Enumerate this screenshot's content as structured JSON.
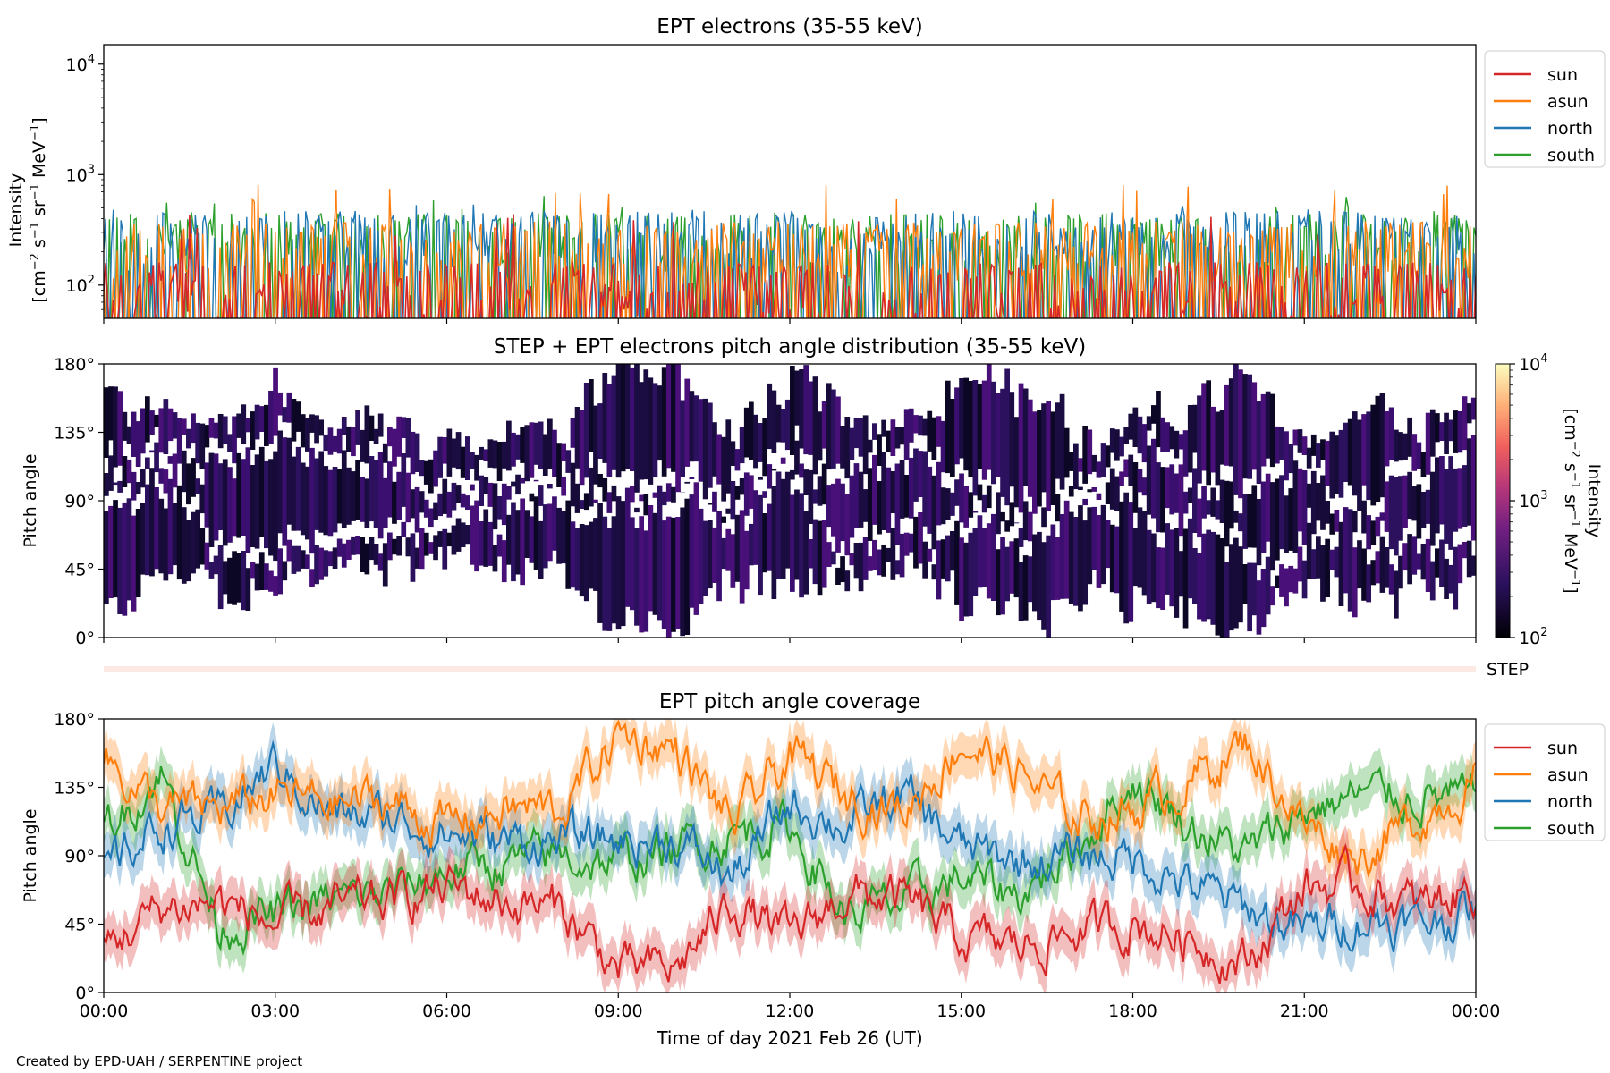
{
  "footer": "Created by EPD-UAH / SERPENTINE project",
  "x_axis": {
    "label": "Time of day 2021 Feb 26 (UT)",
    "ticks": [
      "00:00",
      "03:00",
      "06:00",
      "09:00",
      "12:00",
      "15:00",
      "18:00",
      "21:00",
      "00:00"
    ]
  },
  "colors": {
    "sun": "#d62728",
    "asun": "#ff7f0e",
    "north": "#1f77b4",
    "south": "#2ca02c"
  },
  "chart_data": [
    {
      "type": "line",
      "title": "EPT electrons (35-55 keV)",
      "xlabel": "",
      "ylabel": "Intensity",
      "yunit_base": "[cm",
      "yscale": "log",
      "ylim": [
        50,
        15000
      ],
      "yticks": [
        {
          "value": 100,
          "base": "10",
          "exp": "2"
        },
        {
          "value": 1000,
          "base": "10",
          "exp": "3"
        },
        {
          "value": 10000,
          "base": "10",
          "exp": "4"
        }
      ],
      "xlim_hours": [
        0,
        24
      ],
      "legend_position": "outside-right",
      "series": [
        {
          "name": "sun",
          "typical_level": 90,
          "peak": 450
        },
        {
          "name": "asun",
          "typical_level": 210,
          "peak": 850
        },
        {
          "name": "north",
          "typical_level": 260,
          "peak": 600
        },
        {
          "name": "south",
          "typical_level": 250,
          "peak": 650
        }
      ]
    },
    {
      "type": "heatmap",
      "title": "STEP + EPT electrons pitch angle distribution (35-55 keV)",
      "ylabel": "Pitch angle",
      "ylim": [
        0,
        180
      ],
      "yticks": [
        "0°",
        "45°",
        "90°",
        "135°",
        "180°"
      ],
      "colorbar": {
        "label": "Intensity",
        "scale": "log",
        "range": [
          100,
          10000
        ],
        "ticks": [
          {
            "value": 100,
            "base": "10",
            "exp": "2"
          },
          {
            "value": 1000,
            "base": "10",
            "exp": "3"
          },
          {
            "value": 10000,
            "base": "10",
            "exp": "4"
          }
        ]
      },
      "typical_intensity": 200
    },
    {
      "type": "heatmap",
      "label": "STEP",
      "note": "near-empty strip"
    },
    {
      "type": "line",
      "title": "EPT pitch angle coverage",
      "ylabel": "Pitch angle",
      "ylim": [
        0,
        180
      ],
      "yticks": [
        "0°",
        "45°",
        "90°",
        "135°",
        "180°"
      ],
      "legend_position": "outside-right",
      "x_hours": [
        0,
        1,
        2,
        3,
        4,
        5,
        6,
        7,
        8,
        9,
        10,
        11,
        12,
        13,
        14,
        15,
        16,
        17,
        18,
        19,
        20,
        21,
        22,
        23,
        24
      ],
      "series": [
        {
          "name": "sun",
          "values": [
            30,
            55,
            60,
            45,
            55,
            60,
            70,
            60,
            55,
            15,
            15,
            60,
            35,
            65,
            60,
            35,
            30,
            40,
            45,
            35,
            20,
            70,
            70,
            55,
            70
          ]
        },
        {
          "name": "asun",
          "values": [
            155,
            120,
            120,
            130,
            125,
            125,
            110,
            120,
            120,
            170,
            160,
            110,
            155,
            130,
            120,
            165,
            145,
            115,
            120,
            140,
            165,
            110,
            90,
            115,
            140
          ]
        },
        {
          "name": "north",
          "values": [
            80,
            110,
            115,
            150,
            115,
            115,
            105,
            100,
            100,
            100,
            100,
            75,
            125,
            110,
            130,
            95,
            85,
            90,
            90,
            70,
            55,
            40,
            50,
            45,
            55
          ]
        },
        {
          "name": "south",
          "values": [
            105,
            145,
            45,
            50,
            60,
            65,
            80,
            85,
            90,
            85,
            95,
            105,
            110,
            50,
            60,
            75,
            65,
            95,
            140,
            110,
            90,
            120,
            130,
            130,
            125
          ]
        }
      ]
    }
  ]
}
